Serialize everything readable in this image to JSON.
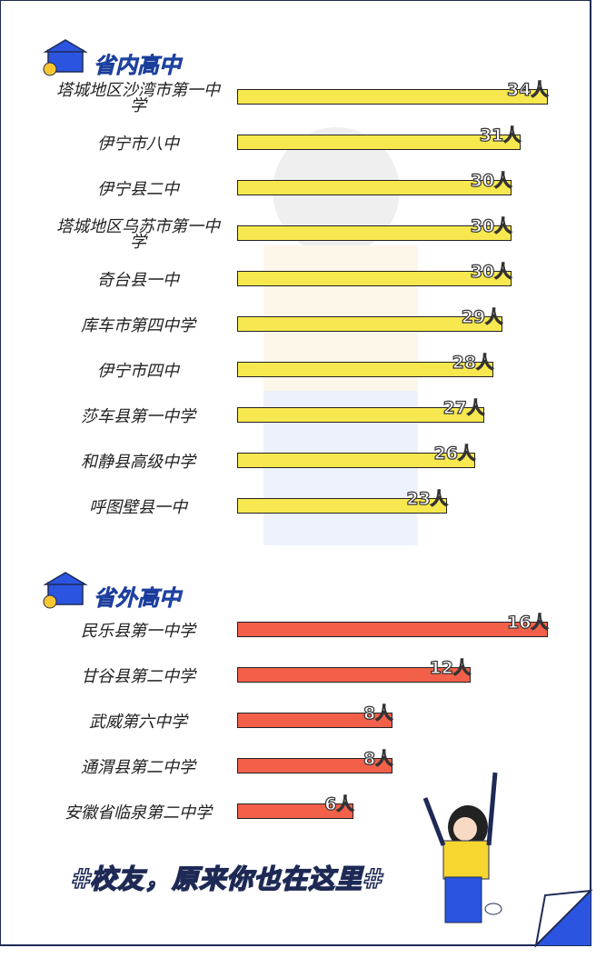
{
  "chart_data": [
    {
      "type": "bar",
      "title": "省内高中",
      "categories": [
        "塔城地区沙湾市第一中学",
        "伊宁市八中",
        "伊宁县二中",
        "塔城地区乌苏市第一中学",
        "奇台县一中",
        "库车市第四中学",
        "伊宁市四中",
        "莎车县第一中学",
        "和静县高级中学",
        "呼图壁县一中"
      ],
      "values": [
        34,
        31,
        30,
        30,
        30,
        29,
        28,
        27,
        26,
        23
      ],
      "value_labels": [
        "34人",
        "31人",
        "30人",
        "30人",
        "30人",
        "29人",
        "28人",
        "27人",
        "26人",
        "23人"
      ],
      "color": "#f8e84f"
    },
    {
      "type": "bar",
      "title": "省外高中",
      "categories": [
        "民乐县第一中学",
        "甘谷县第二中学",
        "武威第六中学",
        "通渭县第二中学",
        "安徽省临泉第二中学"
      ],
      "values": [
        16,
        12,
        8,
        8,
        6
      ],
      "value_labels": [
        "16人",
        "12人",
        "8人",
        "8人",
        "6人"
      ],
      "color": "#f2604a"
    }
  ],
  "footer": "#校友，原来你也在这里#"
}
